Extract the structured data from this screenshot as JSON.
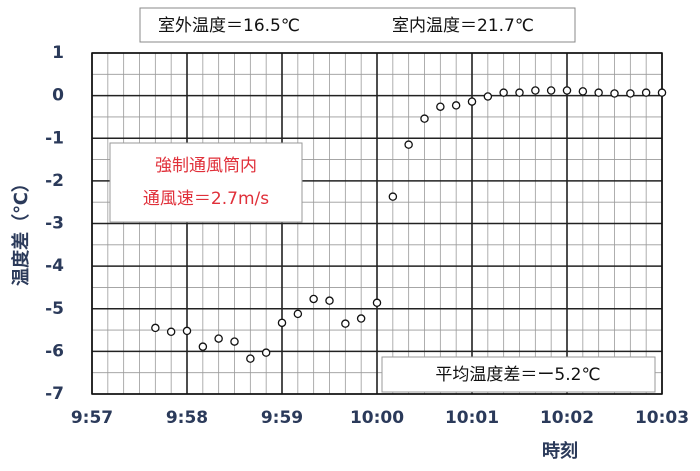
{
  "chart_data": {
    "type": "scatter",
    "annotations": [
      "室外温度＝16.5℃",
      "室内温度＝21.7℃",
      "強制通風筒内",
      "通風速＝2.7m/s",
      "平均温度差＝ー5.2℃"
    ],
    "xlabel": "時刻",
    "ylabel": "温度差（℃）",
    "x": [
      597.667,
      597.833,
      598.0,
      598.167,
      598.333,
      598.5,
      598.667,
      598.833,
      599.0,
      599.167,
      599.333,
      599.5,
      599.667,
      599.833,
      600.0,
      600.167,
      600.333,
      600.5,
      600.667,
      600.833,
      601.0,
      601.167,
      601.333,
      601.5,
      601.667,
      601.833,
      602.0,
      602.167,
      602.333,
      602.5,
      602.667,
      602.833,
      603.0
    ],
    "values": [
      -5.45,
      -5.54,
      -5.52,
      -5.89,
      -5.7,
      -5.77,
      -6.17,
      -6.03,
      -5.33,
      -5.12,
      -4.77,
      -4.81,
      -5.35,
      -5.23,
      -4.86,
      -2.37,
      -1.15,
      -0.54,
      -0.26,
      -0.23,
      -0.14,
      -0.02,
      0.07,
      0.07,
      0.12,
      0.12,
      0.12,
      0.1,
      0.07,
      0.05,
      0.05,
      0.07,
      0.07
    ],
    "color": "#111111",
    "xlim": [
      597,
      603
    ],
    "xticks": [
      {
        "value": 597,
        "label": "9:57"
      },
      {
        "value": 598,
        "label": "9:58"
      },
      {
        "value": 599,
        "label": "9:59"
      },
      {
        "value": 600,
        "label": "10:00"
      },
      {
        "value": 601,
        "label": "10:01"
      },
      {
        "value": 602,
        "label": "10:02"
      },
      {
        "value": 603,
        "label": "10:03"
      }
    ],
    "ylim": [
      -7,
      1
    ],
    "yticks": [
      1,
      0,
      -1,
      -2,
      -3,
      -4,
      -5,
      -6,
      -7
    ],
    "grid": true
  }
}
